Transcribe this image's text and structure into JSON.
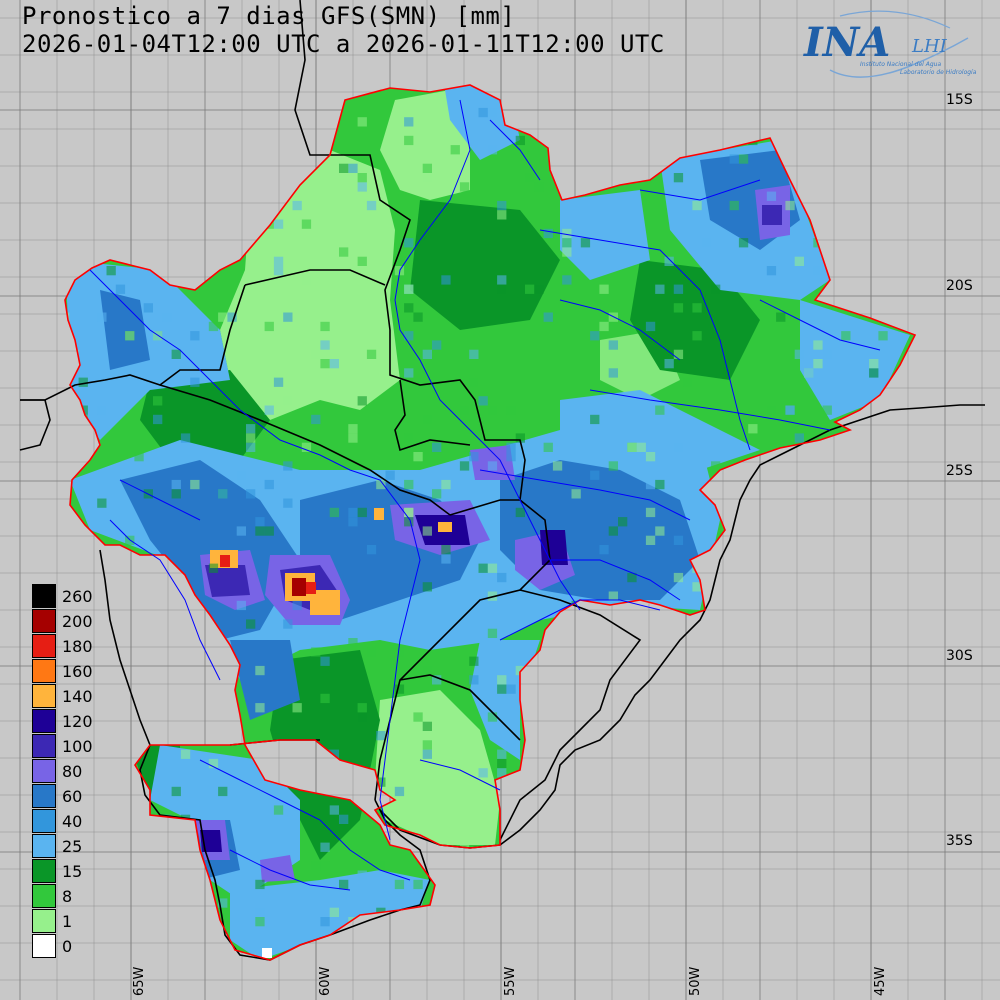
{
  "header": {
    "title_line1": "Pronostico a 7 dias GFS(SMN) [mm]",
    "title_line2": "2026-01-04T12:00 UTC a 2026-01-11T12:00 UTC"
  },
  "logo": {
    "name": "INA",
    "lab": "LHI",
    "caption1": "Instituto Nacional del Agua",
    "caption2": "Laboratorio de Hidrología"
  },
  "map": {
    "lat_labels": [
      "15S",
      "20S",
      "25S",
      "30S",
      "35S"
    ],
    "lon_labels": [
      "65W",
      "60W",
      "55W",
      "50W",
      "45W"
    ],
    "colors": {
      "background": "#c8c8c8",
      "basin_outline": "#ff0000",
      "rivers": "#0000ff",
      "borders": "#000000"
    }
  },
  "legend": {
    "items": [
      {
        "label": "260",
        "color": "#000000"
      },
      {
        "label": "200",
        "color": "#a50000"
      },
      {
        "label": "180",
        "color": "#e61e14"
      },
      {
        "label": "160",
        "color": "#ff7814"
      },
      {
        "label": "140",
        "color": "#ffb43c"
      },
      {
        "label": "120",
        "color": "#1e0096"
      },
      {
        "label": "100",
        "color": "#3c28b4"
      },
      {
        "label": "80",
        "color": "#7864e6"
      },
      {
        "label": "60",
        "color": "#2878c8"
      },
      {
        "label": "40",
        "color": "#3296dc"
      },
      {
        "label": "25",
        "color": "#5ab4f0"
      },
      {
        "label": "15",
        "color": "#0a9628"
      },
      {
        "label": "8",
        "color": "#32c83c"
      },
      {
        "label": "1",
        "color": "#96f08c"
      },
      {
        "label": "0",
        "color": "#ffffff"
      }
    ]
  }
}
